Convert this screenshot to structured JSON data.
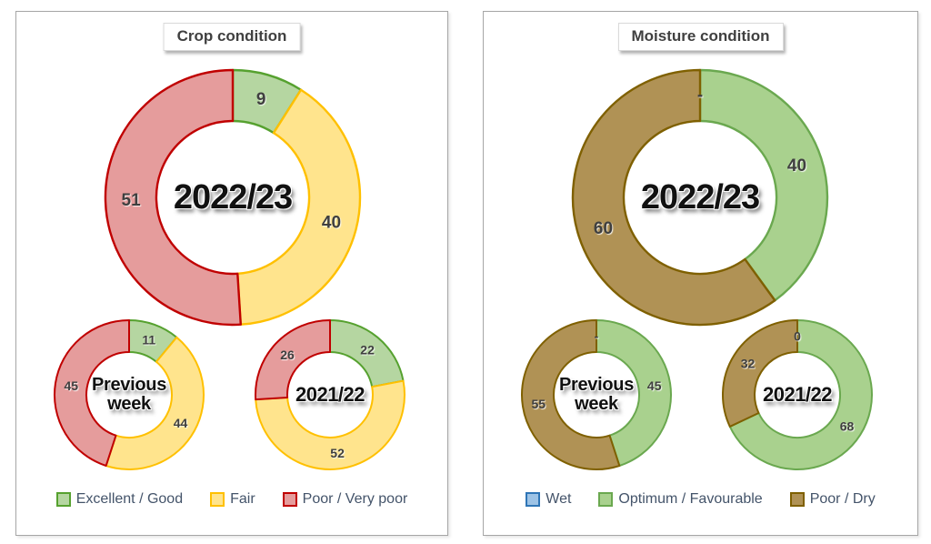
{
  "text_colors": {
    "value_label": "#3f3f3f",
    "legend_text": "#44546a",
    "title_text": "#404040",
    "center_label": "#111111"
  },
  "chart_data": [
    {
      "type": "pie",
      "subtype": "donut",
      "title": "Crop condition",
      "legend_position": "bottom",
      "grid": false,
      "categories": [
        "Excellent / Good",
        "Fair",
        "Poor / Very poor"
      ],
      "slice_fills": [
        "#b5d6a1",
        "#ffe48d",
        "#e59c9c"
      ],
      "slice_borders": [
        "#56a12f",
        "#ffc000",
        "#c00000"
      ],
      "series": [
        {
          "name": "2022/23",
          "center_label": "2022/23",
          "values": [
            9,
            40,
            51
          ],
          "display_labels": [
            "9",
            "40",
            "51"
          ]
        },
        {
          "name": "Previous week",
          "center_label": "Previous\nweek",
          "values": [
            11,
            44,
            45
          ],
          "display_labels": [
            "11",
            "44",
            "45"
          ]
        },
        {
          "name": "2021/22",
          "center_label": "2021/22",
          "values": [
            22,
            52,
            26
          ],
          "display_labels": [
            "22",
            "52",
            "26"
          ]
        }
      ]
    },
    {
      "type": "pie",
      "subtype": "donut",
      "title": "Moisture condition",
      "legend_position": "bottom",
      "grid": false,
      "categories": [
        "Wet",
        "Optimum / Favourable",
        "Poor / Dry"
      ],
      "slice_fills": [
        "#9dc3e6",
        "#a9d18e",
        "#b09255"
      ],
      "slice_borders": [
        "#2e75b6",
        "#6aa84f",
        "#7f6000"
      ],
      "series": [
        {
          "name": "2022/23",
          "center_label": "2022/23",
          "values": [
            0,
            40,
            60
          ],
          "display_labels": [
            "-",
            "40",
            "60"
          ]
        },
        {
          "name": "Previous week",
          "center_label": "Previous\nweek",
          "values": [
            0,
            45,
            55
          ],
          "display_labels": [
            "-",
            "45",
            "55"
          ]
        },
        {
          "name": "2021/22",
          "center_label": "2021/22",
          "values": [
            0,
            68,
            32
          ],
          "display_labels": [
            "0",
            "68",
            "32"
          ]
        }
      ]
    }
  ]
}
